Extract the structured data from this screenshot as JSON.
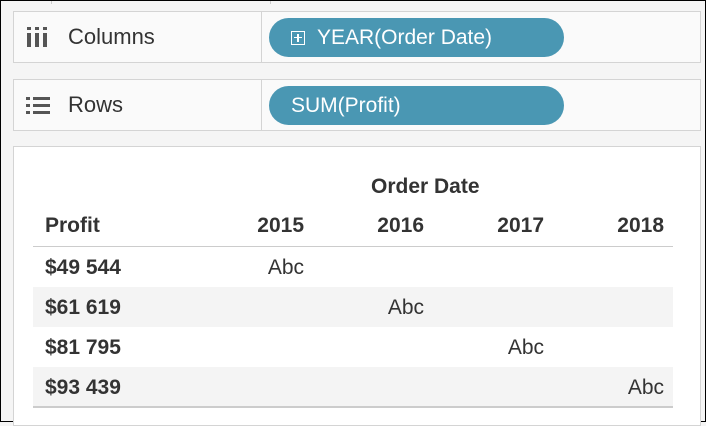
{
  "shelves": {
    "columns": {
      "label": "Columns",
      "icon": "columns-icon",
      "pill": "YEAR(Order Date)"
    },
    "rows": {
      "label": "Rows",
      "icon": "rows-list-icon",
      "pill": "SUM(Profit)"
    }
  },
  "pill_color": "#4a97b3",
  "table": {
    "column_group_header": "Order Date",
    "row_header": "Profit",
    "years": [
      "2015",
      "2016",
      "2017",
      "2018"
    ],
    "rows": [
      {
        "profit": "$49 544",
        "cells": [
          "Abc",
          "",
          "",
          ""
        ]
      },
      {
        "profit": "$61 619",
        "cells": [
          "",
          "Abc",
          "",
          ""
        ]
      },
      {
        "profit": "$81 795",
        "cells": [
          "",
          "",
          "Abc",
          ""
        ]
      },
      {
        "profit": "$93 439",
        "cells": [
          "",
          "",
          "",
          "Abc"
        ]
      }
    ]
  }
}
